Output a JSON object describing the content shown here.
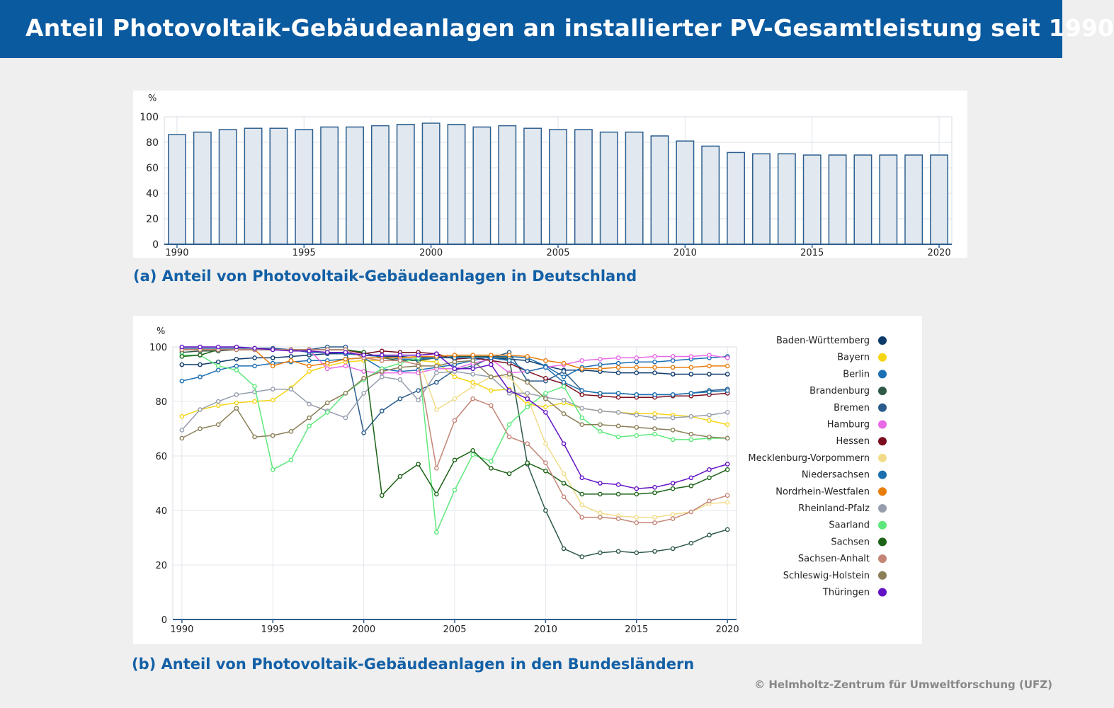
{
  "header": {
    "title": "Anteil Photovoltaik-Gebäudeanlagen an installierter PV-Gesamtleistung seit 1990"
  },
  "captions": {
    "a": "(a) Anteil von Photovoltaik-Gebäudeanlagen in Deutschland",
    "b": "(b) Anteil von Photovoltaik-Gebäudeanlagen in den Bundesländern"
  },
  "credit": "© Helmholtz-Zentrum für Umweltforschung (UFZ)",
  "chart_data": [
    {
      "type": "bar",
      "ylabel": "%",
      "ylim": [
        0,
        100
      ],
      "yticks": [
        0,
        20,
        40,
        60,
        80,
        100
      ],
      "xticks": [
        1990,
        1995,
        2000,
        2005,
        2010,
        2015,
        2020
      ],
      "categories": [
        1990,
        1991,
        1992,
        1993,
        1994,
        1995,
        1996,
        1997,
        1998,
        1999,
        2000,
        2001,
        2002,
        2003,
        2004,
        2005,
        2006,
        2007,
        2008,
        2009,
        2010,
        2011,
        2012,
        2013,
        2014,
        2015,
        2016,
        2017,
        2018,
        2019,
        2020
      ],
      "values": [
        86,
        88,
        90,
        91,
        91,
        90,
        92,
        92,
        93,
        94,
        95,
        94,
        92,
        93,
        91,
        90,
        90,
        88,
        88,
        85,
        81,
        77,
        72,
        71,
        71,
        70,
        70,
        70,
        70,
        70,
        70
      ],
      "colors": {
        "fill": "#e1e8ef",
        "stroke": "#2d5f8f"
      }
    },
    {
      "type": "line",
      "ylabel": "%",
      "ylim": [
        0,
        100
      ],
      "yticks": [
        0,
        20,
        40,
        60,
        80,
        100
      ],
      "xticks": [
        1990,
        1995,
        2000,
        2005,
        2010,
        2015,
        2020
      ],
      "x": [
        1990,
        1991,
        1992,
        1993,
        1994,
        1995,
        1996,
        1997,
        1998,
        1999,
        2000,
        2001,
        2002,
        2003,
        2004,
        2005,
        2006,
        2007,
        2008,
        2009,
        2010,
        2011,
        2012,
        2013,
        2014,
        2015,
        2016,
        2017,
        2018,
        2019,
        2020
      ],
      "legend_position": "right",
      "series": [
        {
          "name": "Baden-Württemberg",
          "color": "#0d3a6b",
          "values": [
            93.5,
            93.5,
            94.5,
            95.5,
            96,
            96,
            96.5,
            97,
            97.5,
            97.5,
            97,
            96.5,
            96.5,
            96,
            96.5,
            96,
            96,
            96,
            95.5,
            95,
            93,
            91.5,
            91.5,
            91,
            90.5,
            90.5,
            90.5,
            90,
            90,
            90,
            90
          ]
        },
        {
          "name": "Bayern",
          "color": "#f5d516",
          "values": [
            74.5,
            77,
            78.5,
            79.5,
            80,
            80.5,
            85,
            91,
            93,
            94.5,
            95,
            95,
            95,
            95,
            94.5,
            89,
            87,
            84,
            84.5,
            79,
            78,
            79.5,
            77.5,
            76.5,
            76,
            75.5,
            75.5,
            75,
            74.5,
            73,
            71.5
          ]
        },
        {
          "name": "Berlin",
          "color": "#1b6fb5",
          "values": [
            87.5,
            89,
            91.5,
            93,
            93,
            94,
            94.5,
            95,
            95,
            95.5,
            96,
            92,
            91,
            91.5,
            92.5,
            93.5,
            95,
            96.5,
            96.5,
            96,
            93,
            89,
            92.5,
            93.5,
            94,
            94.5,
            94.5,
            95,
            95.5,
            96,
            96.5
          ]
        },
        {
          "name": "Brandenburg",
          "color": "#2e5a47",
          "values": [
            98,
            98.5,
            98.5,
            99,
            99,
            99,
            99,
            99,
            99,
            99,
            98,
            96,
            95,
            95,
            96,
            96.5,
            96.5,
            96.5,
            96,
            57,
            40,
            26,
            23,
            24.5,
            25,
            24.5,
            25,
            26,
            28,
            31,
            33
          ]
        },
        {
          "name": "Bremen",
          "color": "#2a5b8c",
          "values": [
            99.5,
            99.5,
            99.5,
            99.5,
            99.5,
            99.5,
            99,
            99,
            100,
            100,
            68.5,
            76.5,
            81,
            84,
            87,
            91.5,
            93,
            96,
            98,
            87.5,
            87.5,
            91,
            84,
            83,
            83,
            82.5,
            82.5,
            82.5,
            83,
            84,
            84.5
          ]
        },
        {
          "name": "Hamburg",
          "color": "#e86ae6",
          "values": [
            99,
            99,
            99,
            99,
            99,
            99,
            99,
            99,
            92,
            93,
            91,
            90.5,
            90.5,
            90.5,
            92,
            92,
            94,
            95.5,
            90.5,
            91,
            92.5,
            93.5,
            95,
            95.5,
            96,
            96,
            96.5,
            96.5,
            96.5,
            97,
            96
          ]
        },
        {
          "name": "Hessen",
          "color": "#7b0d1e",
          "values": [
            99,
            99,
            99,
            99,
            99,
            99,
            99,
            99,
            99,
            99,
            97.5,
            98.5,
            98,
            98,
            97.5,
            95.5,
            96,
            95,
            94,
            91,
            88.5,
            86.5,
            82.5,
            82,
            81.5,
            81.5,
            81.5,
            82,
            82,
            82.5,
            83
          ]
        },
        {
          "name": "Mecklenburg-Vorpommern",
          "color": "#f2dc8a",
          "values": [
            99,
            99,
            99,
            99,
            99,
            99,
            99,
            99,
            99,
            99,
            96,
            96,
            96,
            96,
            77,
            81,
            85.5,
            89,
            89,
            81.5,
            64.5,
            53.5,
            42,
            39,
            38,
            37.5,
            37.5,
            38.5,
            39.5,
            42.5,
            43
          ]
        },
        {
          "name": "Niedersachsen",
          "color": "#1a6fb0",
          "values": [
            99,
            99,
            99,
            99,
            99,
            99,
            99,
            98,
            98,
            97.5,
            97,
            96.5,
            95.5,
            95.5,
            96,
            96,
            96,
            96,
            95,
            91,
            92.5,
            87,
            84,
            83,
            83,
            82.5,
            82.5,
            82.5,
            83,
            83.5,
            84
          ]
        },
        {
          "name": "Nordrhein-Westfalen",
          "color": "#e87d0c",
          "values": [
            99,
            99,
            99,
            99,
            99,
            93,
            95,
            93,
            94,
            95.5,
            96,
            96,
            96,
            96.5,
            96.5,
            97,
            97,
            97,
            97,
            96.5,
            95,
            94,
            92,
            92,
            92.5,
            92.5,
            92.5,
            92.5,
            92.5,
            93,
            93
          ]
        },
        {
          "name": "Rheinland-Pfalz",
          "color": "#969eae",
          "values": [
            69.5,
            77,
            80,
            82.5,
            83.5,
            84.5,
            84.5,
            79,
            76.5,
            74,
            83,
            89,
            88,
            80.5,
            90.5,
            91,
            90,
            89,
            83,
            83,
            81.5,
            80.5,
            77.5,
            76.5,
            76,
            75,
            74,
            74,
            74.5,
            75,
            76
          ]
        },
        {
          "name": "Saarland",
          "color": "#5ee87c",
          "values": [
            97,
            97,
            93,
            91.5,
            85.5,
            55,
            58.5,
            71,
            76,
            83,
            88,
            92,
            94,
            96,
            32,
            47.5,
            60.5,
            58,
            71.5,
            78,
            83,
            85.5,
            74,
            69,
            67,
            67.5,
            68,
            66,
            66,
            66.5,
            66.5
          ]
        },
        {
          "name": "Sachsen",
          "color": "#1c6317",
          "values": [
            96.5,
            97,
            99,
            99,
            99,
            99,
            99,
            99,
            99,
            99,
            98,
            45.5,
            52.5,
            57,
            46,
            58.5,
            62,
            55.5,
            53.5,
            57.5,
            54.5,
            50,
            46,
            46,
            46,
            46,
            46.5,
            48,
            49,
            52,
            55
          ]
        },
        {
          "name": "Sachsen-Anhalt",
          "color": "#c48577",
          "values": [
            99,
            99,
            99,
            99,
            99,
            99,
            99,
            99,
            99,
            99,
            96,
            95,
            95,
            93.5,
            55.5,
            73,
            81,
            78.5,
            67,
            64.5,
            57.5,
            45,
            37.5,
            37.5,
            37,
            35.5,
            35.5,
            37,
            39.5,
            43.5,
            45.5
          ]
        },
        {
          "name": "Schleswig-Holstein",
          "color": "#8a7f57",
          "values": [
            66.5,
            70,
            71.5,
            77.5,
            67,
            67.5,
            69,
            74,
            79.5,
            83,
            88.5,
            91,
            92.5,
            93,
            93,
            94.5,
            95,
            89,
            90,
            87,
            81,
            75.5,
            71.5,
            71.5,
            71,
            70.5,
            70,
            69.5,
            68,
            67,
            66.5
          ]
        },
        {
          "name": "Thüringen",
          "color": "#6311c5",
          "values": [
            100,
            100,
            100,
            100,
            99.5,
            99,
            98.5,
            98.5,
            98,
            98,
            97,
            97,
            97,
            97,
            97.5,
            92,
            92,
            93.5,
            84,
            81,
            76,
            64.5,
            52,
            50,
            49.5,
            48,
            48.5,
            50,
            52,
            55,
            57
          ]
        }
      ]
    }
  ]
}
